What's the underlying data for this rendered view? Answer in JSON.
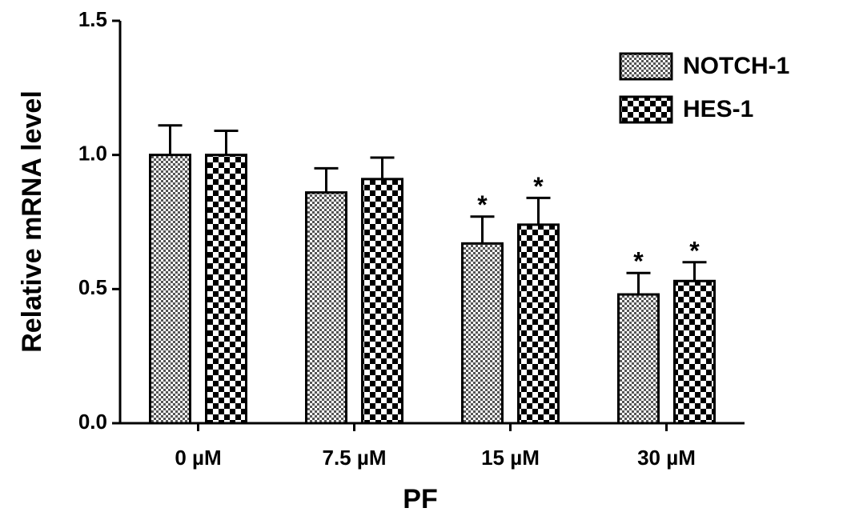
{
  "chart_data": {
    "type": "bar",
    "categories": [
      "0 µM",
      "7.5 µM",
      "15 µM",
      "30 µM"
    ],
    "series": [
      {
        "name": "NOTCH-1",
        "color": "#000000",
        "pattern": "fine",
        "values": [
          1.0,
          0.86,
          0.67,
          0.48
        ],
        "errors": [
          0.11,
          0.09,
          0.1,
          0.08
        ],
        "annotations": [
          null,
          null,
          "*",
          "*"
        ]
      },
      {
        "name": "HES-1",
        "color": "#000000",
        "pattern": "coarse",
        "values": [
          1.0,
          0.91,
          0.74,
          0.53
        ],
        "errors": [
          0.09,
          0.08,
          0.1,
          0.07
        ],
        "annotations": [
          null,
          null,
          "*",
          "*"
        ]
      }
    ],
    "x_label": "PF",
    "y_label": "Relative mRNA level",
    "ylim": [
      0,
      1.5
    ],
    "yticks": [
      {
        "value": 0,
        "label": "0.0"
      },
      {
        "value": 0.5,
        "label": "0.5"
      },
      {
        "value": 1,
        "label": "1.0"
      },
      {
        "value": 1.5,
        "label": "1.5"
      }
    ],
    "grid": false,
    "legend": "top-right"
  }
}
